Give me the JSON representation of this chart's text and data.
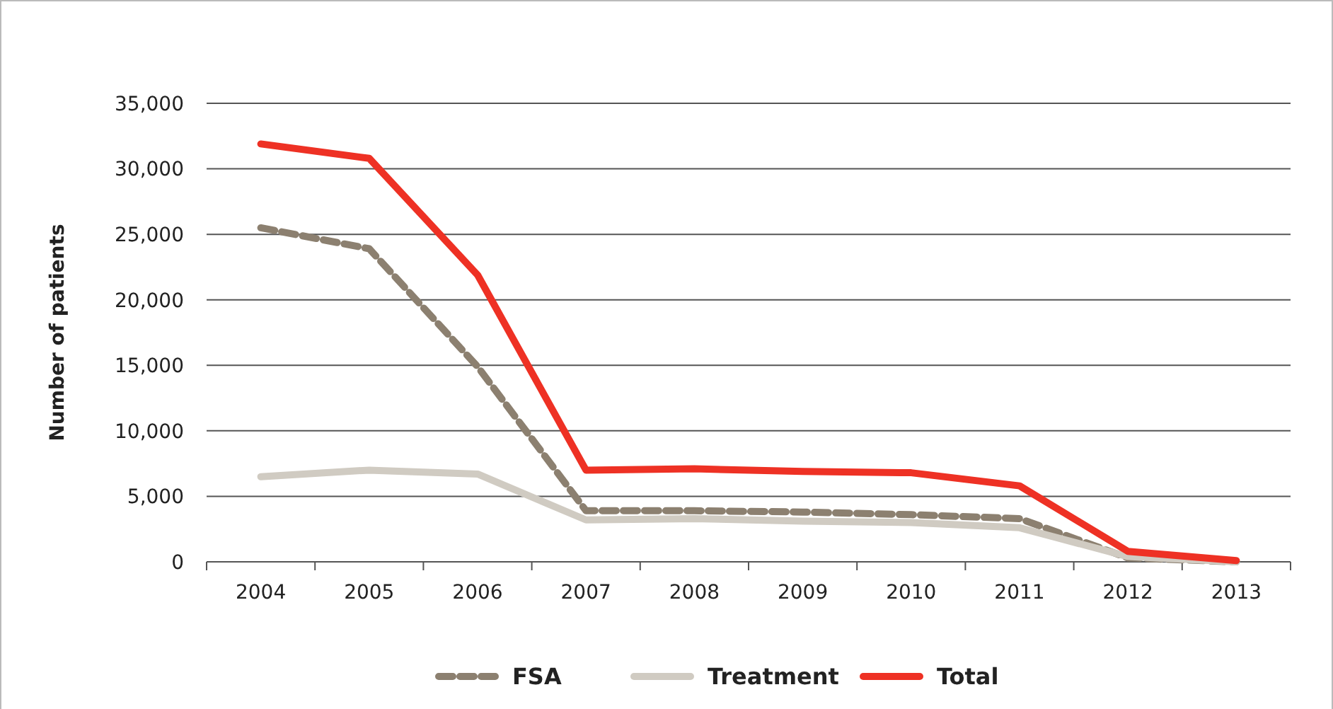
{
  "chart_data": {
    "type": "line",
    "ylabel": "Number of patients",
    "categories": [
      "2004",
      "2005",
      "2006",
      "2007",
      "2008",
      "2009",
      "2010",
      "2011",
      "2012",
      "2013"
    ],
    "series": [
      {
        "name": "FSA",
        "color": "#8c8070",
        "line_style": "dashed",
        "values": [
          25500,
          23900,
          14900,
          3900,
          3900,
          3800,
          3600,
          3300,
          300,
          0
        ]
      },
      {
        "name": "Treatment",
        "color": "#d0cbc2",
        "values": [
          6500,
          7000,
          6700,
          3200,
          3300,
          3100,
          3000,
          2600,
          400,
          0
        ]
      },
      {
        "name": "Total",
        "color": "#ee3124",
        "values": [
          31900,
          30800,
          21900,
          7000,
          7100,
          6900,
          6800,
          5800,
          800,
          100
        ]
      }
    ],
    "ylim": [
      0,
      35000
    ],
    "yticks": [
      {
        "value": 0,
        "label": "0"
      },
      {
        "value": 5000,
        "label": "5,000"
      },
      {
        "value": 10000,
        "label": "10,000"
      },
      {
        "value": 15000,
        "label": "15,000"
      },
      {
        "value": 20000,
        "label": "20,000"
      },
      {
        "value": 25000,
        "label": "25,000"
      },
      {
        "value": 30000,
        "label": "30,000"
      },
      {
        "value": 35000,
        "label": "35,000"
      }
    ],
    "grid": "y",
    "legend": "bottom",
    "marker": "none"
  }
}
